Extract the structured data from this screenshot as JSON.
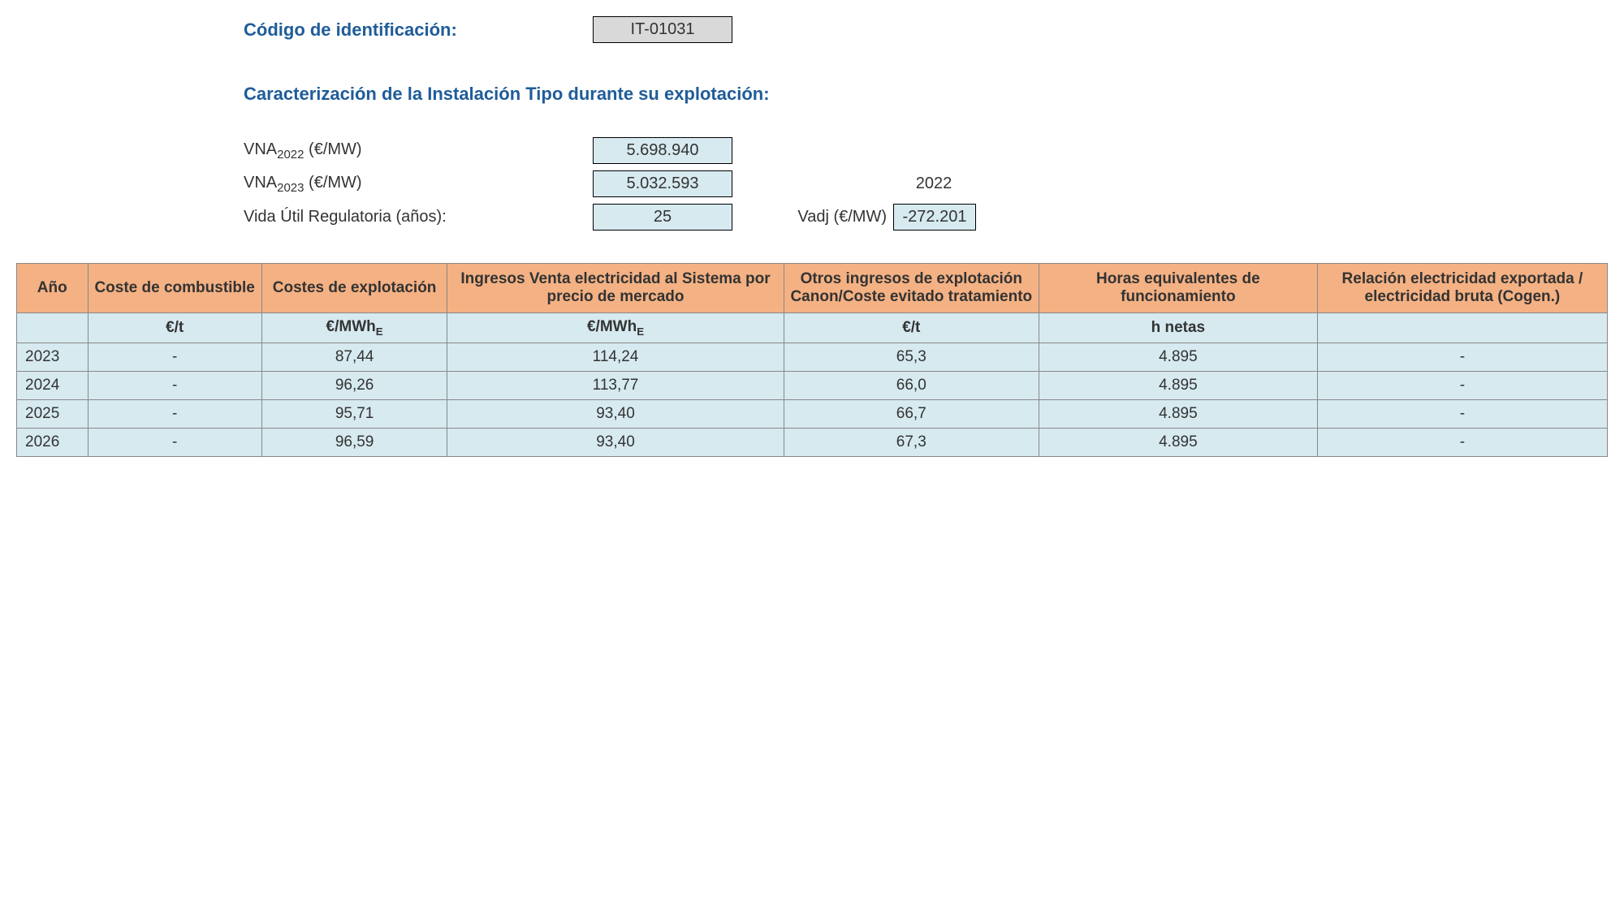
{
  "header": {
    "code_label": "Código de identificación:",
    "code_value": "IT-01031",
    "section_title": "Caracterización de la Instalación Tipo durante su explotación:",
    "vna2022_label_prefix": "VNA",
    "vna2022_sub": "2022",
    "vna2022_unit": " (€/MW)",
    "vna2022_value": "5.698.940",
    "vna2023_label_prefix": "VNA",
    "vna2023_sub": "2023",
    "vna2023_unit": " (€/MW)",
    "vna2023_value": "5.032.593",
    "vida_label": "Vida Útil Regulatoria (años):",
    "vida_value": "25",
    "year_right": "2022",
    "vadj_label": "Vadj (€/MW)",
    "vadj_value": "-272.201"
  },
  "table": {
    "headers": {
      "ano": "Año",
      "coste_comb": "Coste de combustible",
      "costes_expl": "Costes de explotación",
      "ingresos": "Ingresos Venta electricidad al Sistema por precio de mercado",
      "otros": "Otros ingresos de explotación Canon/Coste evitado tratamiento",
      "horas": "Horas equivalentes de funcionamiento",
      "relacion": "Relación electricidad exportada / electricidad bruta (Cogen.)"
    },
    "units": {
      "ano": "",
      "coste_comb": "€/t",
      "costes_expl_pre": "€/MWh",
      "costes_expl_sub": "E",
      "ingresos_pre": "€/MWh",
      "ingresos_sub": "E",
      "otros": "€/t",
      "horas": "h netas",
      "relacion": ""
    },
    "rows": [
      {
        "ano": "2023",
        "coste_comb": "-",
        "costes_expl": "87,44",
        "ingresos": "114,24",
        "otros": "65,3",
        "horas": "4.895",
        "relacion": "-"
      },
      {
        "ano": "2024",
        "coste_comb": "-",
        "costes_expl": "96,26",
        "ingresos": "113,77",
        "otros": "66,0",
        "horas": "4.895",
        "relacion": "-"
      },
      {
        "ano": "2025",
        "coste_comb": "-",
        "costes_expl": "95,71",
        "ingresos": "93,40",
        "otros": "66,7",
        "horas": "4.895",
        "relacion": "-"
      },
      {
        "ano": "2026",
        "coste_comb": "-",
        "costes_expl": "96,59",
        "ingresos": "93,40",
        "otros": "67,3",
        "horas": "4.895",
        "relacion": "-"
      }
    ],
    "col_widths": [
      "60px",
      "150px",
      "160px",
      "290px",
      "220px",
      "240px",
      "250px"
    ]
  }
}
